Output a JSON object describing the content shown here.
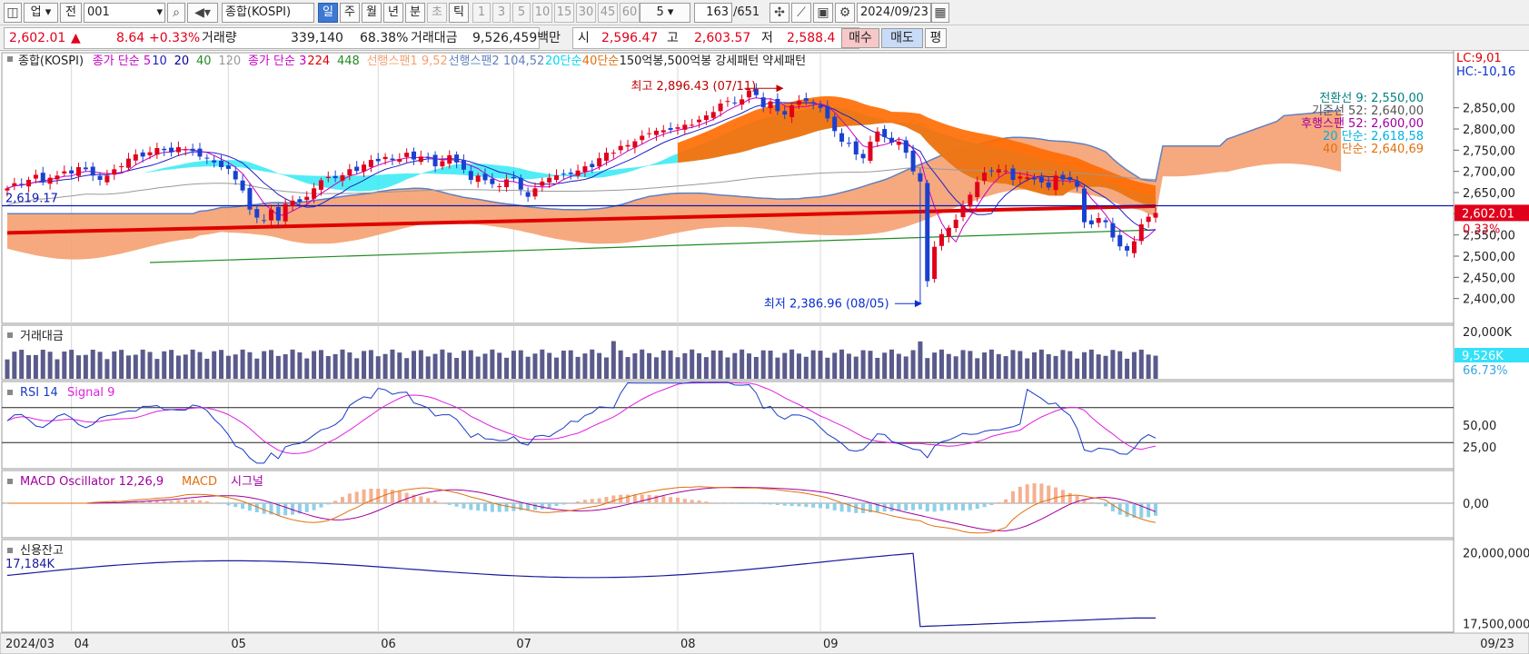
{
  "toolbar": {
    "market_select": "업",
    "prev_label": "전",
    "code": "001",
    "search_icon": "search-icon",
    "name": "종합(KOSPI)",
    "periods": [
      "일",
      "주",
      "월",
      "년",
      "분",
      "초",
      "틱"
    ],
    "active_period": "일",
    "intervals": [
      "1",
      "3",
      "5",
      "10",
      "15",
      "30",
      "45",
      "60"
    ],
    "n_value": "5",
    "count": "163",
    "total": "/651",
    "date": "2024/09/23"
  },
  "info": {
    "price": "2,602.01",
    "arrow": "▲",
    "change": "8.64",
    "change_pct": "+0.33%",
    "volume_label": "거래량",
    "volume": "339,140",
    "volume_pct": "68.38%",
    "amount_label": "거래대금",
    "amount": "9,526,459백만",
    "open_label": "시",
    "open": "2,596.47",
    "high_label": "고",
    "high": "2,603.57",
    "low_label": "저",
    "low": "2,588.4",
    "buy": "매수",
    "sell": "매도",
    "avg": "평"
  },
  "legend": [
    {
      "text": "종합(KOSPI)",
      "color": "#222222"
    },
    {
      "text": "종가 단순 5",
      "color": "#c800c8"
    },
    {
      "text": "10",
      "color": "#2020c8"
    },
    {
      "text": "20",
      "color": "#0000a0"
    },
    {
      "text": "40",
      "color": "#228b22"
    },
    {
      "text": "120",
      "color": "#999999"
    },
    {
      "text": "종가 단순 3",
      "color": "#c800c8"
    },
    {
      "text": "224",
      "color": "#e00000"
    },
    {
      "text": "448",
      "color": "#228b22"
    },
    {
      "text": "선행스팬1 9,52",
      "color": "#f5a070"
    },
    {
      "text": "선행스팬2 104,52",
      "color": "#6080c0"
    },
    {
      "text": "20단순",
      "color": "#00d8f0"
    },
    {
      "text": "40단순",
      "color": "#e07010"
    },
    {
      "text": "150억봉,500억봉  강세패턴  약세패턴",
      "color": "#222222"
    }
  ],
  "right_labels": {
    "lc": "LC:9,01",
    "hc": "HC:-10,16",
    "ichimoku": [
      {
        "text": "전환선 9: 2,550,00",
        "color": "#008080"
      },
      {
        "text": "기준선 52: 2,640,00",
        "color": "#555555"
      },
      {
        "text": "후행스팬 52: 2,600,00",
        "color": "#a000a0"
      },
      {
        "text": "20 단순: 2,618,58",
        "color": "#00b0e0"
      },
      {
        "text": "40 단순: 2,640,69",
        "color": "#e07010"
      }
    ],
    "price_tag": "2,602.01",
    "pct_tag": "0.33%",
    "amount_tag": "9,526K",
    "amount_pct": "66.73%",
    "left_price": "2,619.17",
    "left_margin": "17,184K"
  },
  "annotations": {
    "high": "최고 2,896.43 (07/11)",
    "low": "최저 2,386.96 (08/05)"
  },
  "panels": {
    "amount_title": "거래대금",
    "rsi_title": "RSI 14",
    "rsi_signal": "Signal 9",
    "macd_title": "MACD Oscillator 12,26,9",
    "macd_macd": "MACD",
    "macd_signal": "시그널",
    "margin_title": "신용잔고"
  },
  "colors": {
    "up": "#e0001b",
    "down": "#1a40d0",
    "cloud_orange": "#f5a070",
    "cloud_cyan": "#33eaf5",
    "cloud_dark": "#ff6a00",
    "volume": "#5a5a8c",
    "rsi": "#1a3ac8",
    "rsi_signal": "#e020e0"
  },
  "chart_data": [
    {
      "type": "candlestick",
      "title": "종합(KOSPI)",
      "ylim": [
        2350,
        2920
      ],
      "y_ticks": [
        "2,400,00",
        "2,450,00",
        "2,500,00",
        "2,550,00",
        "2,600,00",
        "2,650,00",
        "2,700,00",
        "2,750,00",
        "2,800,00",
        "2,850,00"
      ],
      "y_tick_values": [
        2400,
        2450,
        2500,
        2550,
        2600,
        2650,
        2700,
        2750,
        2800,
        2850
      ],
      "x_labels": [
        "2024/03",
        "04",
        "05",
        "06",
        "07",
        "08",
        "09",
        "09/23"
      ],
      "close": [
        2660,
        2672,
        2670,
        2680,
        2692,
        2675,
        2685,
        2690,
        2700,
        2695,
        2710,
        2705,
        2690,
        2680,
        2690,
        2705,
        2712,
        2730,
        2740,
        2735,
        2745,
        2755,
        2750,
        2745,
        2757,
        2752,
        2748,
        2735,
        2731,
        2721,
        2710,
        2706,
        2681,
        2655,
        2610,
        2591,
        2584,
        2610,
        2584,
        2623,
        2631,
        2628,
        2640,
        2660,
        2679,
        2687,
        2684,
        2691,
        2705,
        2701,
        2716,
        2727,
        2724,
        2734,
        2727,
        2729,
        2744,
        2728,
        2735,
        2733,
        2712,
        2724,
        2738,
        2721,
        2704,
        2680,
        2690,
        2679,
        2670,
        2665,
        2681,
        2684,
        2657,
        2640,
        2660,
        2676,
        2685,
        2691,
        2693,
        2694,
        2702,
        2712,
        2710,
        2731,
        2744,
        2744,
        2760,
        2762,
        2771,
        2784,
        2790,
        2796,
        2797,
        2798,
        2804,
        2810,
        2810,
        2822,
        2832,
        2840,
        2860,
        2866,
        2862,
        2870,
        2891,
        2880,
        2851,
        2865,
        2842,
        2834,
        2856,
        2867,
        2866,
        2860,
        2850,
        2825,
        2795,
        2770,
        2765,
        2740,
        2731,
        2770,
        2794,
        2781,
        2768,
        2770,
        2744,
        2700,
        2676,
        2441,
        2522,
        2552,
        2567,
        2586,
        2618,
        2645,
        2675,
        2697,
        2701,
        2705,
        2702,
        2680,
        2688,
        2686,
        2681,
        2674,
        2662,
        2690,
        2681,
        2680,
        2664,
        2580,
        2575,
        2590,
        2580,
        2544,
        2523,
        2513,
        2535,
        2575,
        2593,
        2602
      ]
    },
    {
      "type": "bar",
      "title": "거래대금",
      "ylim": [
        0,
        20000
      ],
      "y_ticks": [
        "20,000K"
      ],
      "last_value": "9,526K"
    },
    {
      "type": "line",
      "title": "RSI 14",
      "ylim": [
        0,
        100
      ],
      "y_ticks": [
        "50,00",
        "25,00"
      ],
      "series": [
        {
          "name": "RSI 14"
        },
        {
          "name": "Signal 9"
        }
      ]
    },
    {
      "type": "line",
      "title": "MACD Oscillator 12,26,9",
      "y_ticks": [
        "0,00"
      ],
      "series": [
        {
          "name": "MACD Oscillator 12,26,9"
        },
        {
          "name": "MACD"
        },
        {
          "name": "시그널"
        }
      ]
    },
    {
      "type": "line",
      "title": "신용잔고",
      "y_ticks": [
        "20,000,000",
        "17,500,000"
      ],
      "series": [
        {
          "name": "신용잔고"
        }
      ]
    }
  ]
}
